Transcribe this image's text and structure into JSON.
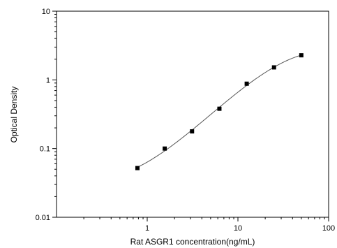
{
  "chart_data": {
    "type": "scatter",
    "title": "",
    "xlabel": "Rat ASGR1 concentration(ng/mL)",
    "ylabel": "Optical Density",
    "x_scale": "log",
    "y_scale": "log",
    "xlim": [
      0.1,
      100
    ],
    "ylim": [
      0.01,
      10
    ],
    "x_ticks": [
      {
        "value": 1,
        "label": "1"
      },
      {
        "value": 10,
        "label": "10"
      },
      {
        "value": 100,
        "label": "100"
      }
    ],
    "y_ticks": [
      {
        "value": 0.01,
        "label": "0.01"
      },
      {
        "value": 0.1,
        "label": "0.1"
      },
      {
        "value": 1,
        "label": "1"
      },
      {
        "value": 10,
        "label": "10"
      }
    ],
    "grid": false,
    "legend": "none",
    "series": [
      {
        "x": [
          0.78,
          1.56,
          3.12,
          6.25,
          12.5,
          25,
          50
        ],
        "y": [
          0.052,
          0.1,
          0.178,
          0.38,
          0.88,
          1.52,
          2.28
        ],
        "marker": "square",
        "color": "#000000",
        "fit_curve": true
      }
    ]
  }
}
